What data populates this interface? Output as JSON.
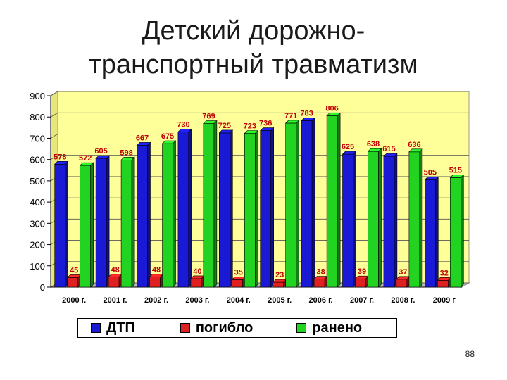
{
  "title_line1": "Детский дорожно-",
  "title_line2": "транспортный травматизм",
  "page_number": "88",
  "chart_data": {
    "type": "bar",
    "categories": [
      "2000 г.",
      "2001 г.",
      "2002 г.",
      "2003 г.",
      "2004 г.",
      "2005 г.",
      "2006 г.",
      "2007 г.",
      "2008 г.",
      "2009 г"
    ],
    "series": [
      {
        "name": "ДТП",
        "color": "#1a1ad6",
        "values": [
          578,
          605,
          667,
          730,
          725,
          736,
          783,
          625,
          615,
          505
        ]
      },
      {
        "name": "погибло",
        "color": "#e02020",
        "values": [
          45,
          48,
          48,
          40,
          35,
          23,
          38,
          39,
          37,
          32
        ]
      },
      {
        "name": "ранено",
        "color": "#22d322",
        "values": [
          572,
          598,
          675,
          769,
          723,
          771,
          806,
          638,
          636,
          515
        ]
      }
    ],
    "ylim": [
      0,
      900
    ],
    "yticks": [
      "0",
      "100",
      "200",
      "300",
      "400",
      "500",
      "600",
      "700",
      "800",
      "900"
    ],
    "grid": true,
    "legend_position": "bottom",
    "plot_background": "#ffff99"
  }
}
